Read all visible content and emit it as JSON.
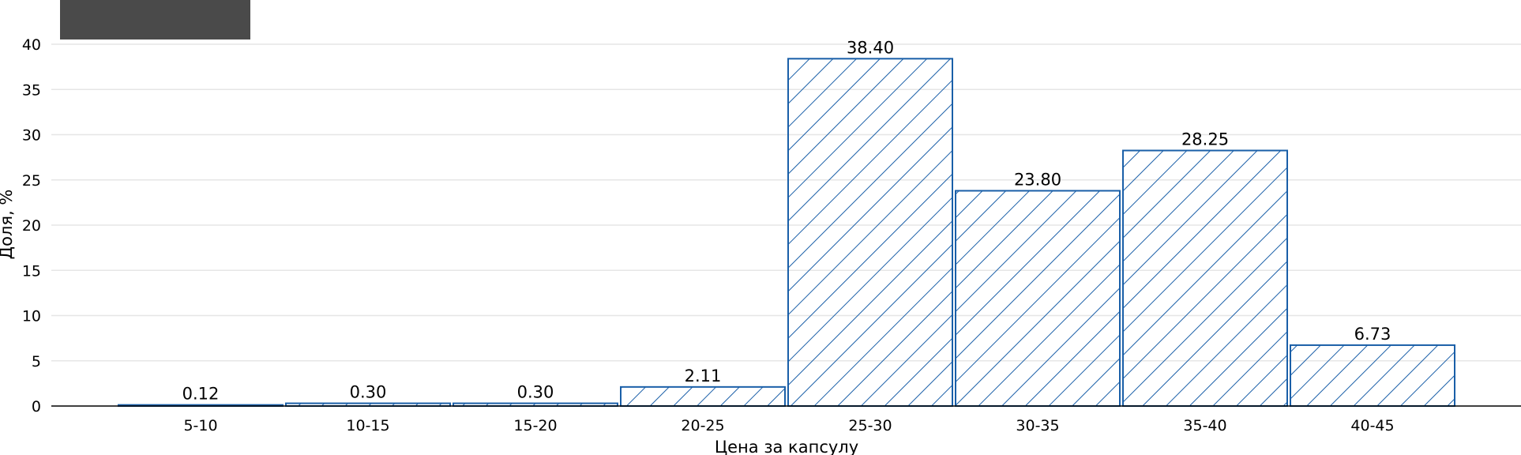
{
  "chart_data": {
    "type": "bar",
    "categories": [
      "5-10",
      "10-15",
      "15-20",
      "20-25",
      "25-30",
      "30-35",
      "35-40",
      "40-45"
    ],
    "values": [
      0.12,
      0.3,
      0.3,
      2.11,
      38.4,
      23.8,
      28.25,
      6.73
    ],
    "value_labels": [
      "0.12",
      "0.30",
      "0.30",
      "2.11",
      "38.40",
      "23.80",
      "28.25",
      "6.73"
    ],
    "xlabel": "Цена за капсулу",
    "ylabel": "Доля, %",
    "ylim": [
      0,
      40
    ],
    "yticks": [
      0,
      5,
      10,
      15,
      20,
      25,
      30,
      35,
      40
    ],
    "grid": true,
    "bar_style": "hatched",
    "legend": "top-left"
  },
  "colors": {
    "bar_edge": "#1a5fa8",
    "hatch": "#1a5fa8",
    "grid": "#e6e6e6",
    "axis": "#000000",
    "legend_box": "#4a4a4a"
  }
}
